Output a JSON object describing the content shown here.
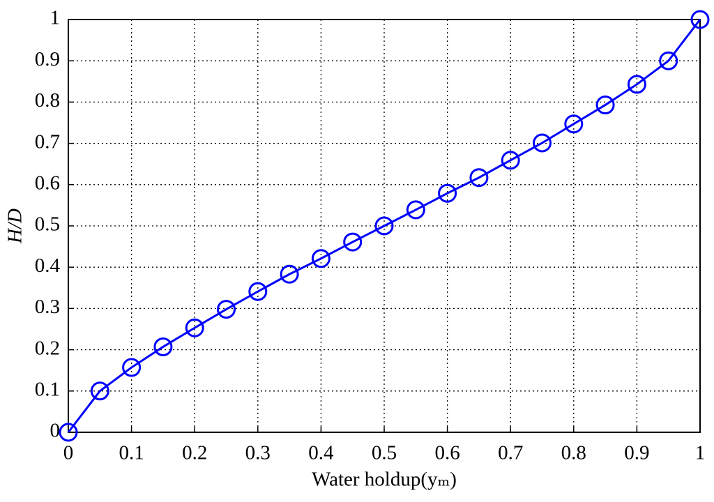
{
  "chart_data": {
    "type": "line",
    "xlabel": "Water holdup(yₘ)",
    "ylabel": "H/D",
    "x": [
      0,
      0.05,
      0.1,
      0.15,
      0.2,
      0.25,
      0.3,
      0.35,
      0.4,
      0.45,
      0.5,
      0.55,
      0.6,
      0.65,
      0.7,
      0.75,
      0.8,
      0.85,
      0.9,
      0.95,
      1
    ],
    "values": [
      0,
      0.1,
      0.157,
      0.207,
      0.253,
      0.298,
      0.341,
      0.383,
      0.421,
      0.461,
      0.5,
      0.539,
      0.579,
      0.617,
      0.659,
      0.701,
      0.747,
      0.793,
      0.843,
      0.9,
      1
    ],
    "color": "#0000ff",
    "xlim": [
      0,
      1
    ],
    "ylim": [
      0,
      1
    ],
    "xticks": [
      0,
      0.1,
      0.2,
      0.3,
      0.4,
      0.5,
      0.6,
      0.7,
      0.8,
      0.9,
      1
    ],
    "yticks": [
      0,
      0.1,
      0.2,
      0.3,
      0.4,
      0.5,
      0.6,
      0.7,
      0.8,
      0.9,
      1
    ],
    "grid": true
  }
}
